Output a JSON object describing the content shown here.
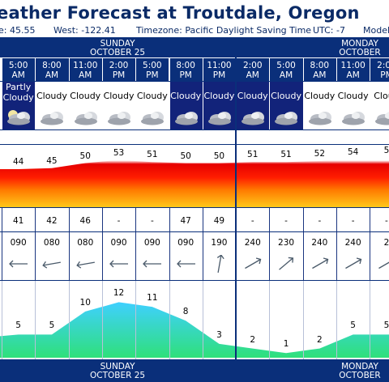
{
  "title": "eather Forecast at Troutdale, Oregon",
  "info": {
    "lat": "e: 45.55",
    "west": "West: -122.41",
    "timezone": "Timezone: Pacific Daylight Saving Time",
    "utc": "UTC: -7",
    "model": "Model"
  },
  "days_top": [
    {
      "day": "SUNDAY",
      "date": "OCTOBER 25"
    },
    {
      "day": "MONDAY",
      "date": "OCTOBER"
    }
  ],
  "days_bottom": [
    {
      "day": "SUNDAY",
      "date": "OCTOBER 25"
    },
    {
      "day": "MONDAY",
      "date": "OCTOBER"
    }
  ],
  "columns": [
    {
      "t1": "5:00",
      "t2": "AM",
      "sky1": "Partly",
      "sky2": "Cloudy",
      "night": true,
      "icon": "partly-cloudy-night-icon",
      "temp": "44",
      "dew": "41",
      "dir": "090",
      "wind": "5",
      "rot": 180
    },
    {
      "t1": "8:00",
      "t2": "AM",
      "sky1": "",
      "sky2": "Cloudy",
      "night": false,
      "icon": "cloudy-icon",
      "temp": "45",
      "dew": "42",
      "dir": "080",
      "wind": "5",
      "rot": 170
    },
    {
      "t1": "11:00",
      "t2": "AM",
      "sky1": "",
      "sky2": "Cloudy",
      "night": false,
      "icon": "cloudy-icon",
      "temp": "50",
      "dew": "46",
      "dir": "080",
      "wind": "10",
      "rot": 170
    },
    {
      "t1": "2:00",
      "t2": "PM",
      "sky1": "",
      "sky2": "Cloudy",
      "night": false,
      "icon": "cloudy-icon",
      "temp": "53",
      "dew": "-",
      "dir": "090",
      "wind": "12",
      "rot": 180
    },
    {
      "t1": "5:00",
      "t2": "PM",
      "sky1": "",
      "sky2": "Cloudy",
      "night": false,
      "icon": "cloudy-icon",
      "temp": "51",
      "dew": "-",
      "dir": "090",
      "wind": "11",
      "rot": 180
    },
    {
      "t1": "8:00",
      "t2": "PM",
      "sky1": "",
      "sky2": "Cloudy",
      "night": true,
      "icon": "cloudy-icon",
      "temp": "50",
      "dew": "47",
      "dir": "090",
      "wind": "8",
      "rot": 180
    },
    {
      "t1": "11:00",
      "t2": "PM",
      "sky1": "",
      "sky2": "Cloudy",
      "night": true,
      "icon": "cloudy-icon",
      "temp": "50",
      "dew": "49",
      "dir": "190",
      "wind": "3",
      "rot": -80
    },
    {
      "t1": "2:00",
      "t2": "AM",
      "sky1": "",
      "sky2": "Cloudy",
      "night": true,
      "icon": "cloudy-icon",
      "temp": "51",
      "dew": "-",
      "dir": "240",
      "wind": "2",
      "rot": -30
    },
    {
      "t1": "5:00",
      "t2": "AM",
      "sky1": "",
      "sky2": "Cloudy",
      "night": true,
      "icon": "cloudy-icon",
      "temp": "51",
      "dew": "-",
      "dir": "230",
      "wind": "1",
      "rot": -40
    },
    {
      "t1": "8:00",
      "t2": "AM",
      "sky1": "",
      "sky2": "Cloudy",
      "night": false,
      "icon": "cloudy-icon",
      "temp": "52",
      "dew": "-",
      "dir": "240",
      "wind": "2",
      "rot": -30
    },
    {
      "t1": "11:00",
      "t2": "AM",
      "sky1": "",
      "sky2": "Cloudy",
      "night": false,
      "icon": "cloudy-icon",
      "temp": "54",
      "dew": "-",
      "dir": "240",
      "wind": "5",
      "rot": -30
    },
    {
      "t1": "2:00",
      "t2": "PM",
      "sky1": "",
      "sky2": "Cloud",
      "night": false,
      "icon": "cloudy-icon",
      "temp": "5",
      "dew": "-",
      "dir": "2",
      "wind": "5",
      "rot": -30
    }
  ],
  "colors": {
    "header_bg": "#0a2f7a",
    "night_sky": "#12237a",
    "text": "#0a2a66"
  }
}
